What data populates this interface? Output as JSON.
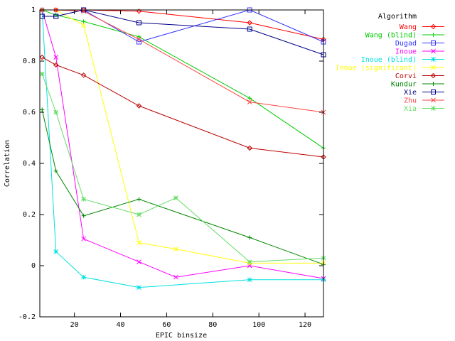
{
  "chart_data": {
    "type": "line",
    "title": "",
    "xlabel": "EPIC binsize",
    "ylabel": "Correlation",
    "xlim": [
      5,
      128
    ],
    "ylim": [
      -0.2,
      1.0
    ],
    "xticks": [
      20,
      40,
      60,
      80,
      100,
      120
    ],
    "yticks": [
      -0.2,
      0,
      0.2,
      0.4,
      0.6,
      0.8,
      1
    ],
    "ytick_labels": [
      "-0.2",
      "0",
      "0.2",
      "0.4",
      "0.6",
      "0.8",
      "1"
    ],
    "grid": false,
    "legend_title": "Algorithm",
    "legend_position": "top-right, outside plot",
    "series": [
      {
        "name": "Wang",
        "color": "#ff0000",
        "marker": "diamond",
        "x": [
          6,
          12,
          24,
          48,
          96,
          128
        ],
        "y": [
          1.0,
          1.0,
          1.0,
          0.995,
          0.95,
          0.885
        ]
      },
      {
        "name": "Wang (blind)",
        "color": "#00cc00",
        "marker": "plus",
        "x": [
          6,
          12,
          24,
          48,
          96,
          128
        ],
        "y": [
          1.0,
          0.98,
          0.955,
          0.895,
          0.655,
          0.46
        ]
      },
      {
        "name": "Dugad",
        "color": "#3333ff",
        "marker": "square",
        "x": [
          6,
          12,
          24,
          48,
          96,
          128
        ],
        "y": [
          0.975,
          0.975,
          1.0,
          0.875,
          1.0,
          0.875
        ]
      },
      {
        "name": "Inoue",
        "color": "#ff00ff",
        "marker": "x",
        "x": [
          6,
          12,
          24,
          48,
          64,
          96,
          128
        ],
        "y": [
          1.0,
          0.815,
          0.105,
          0.015,
          -0.045,
          0.0,
          -0.05
        ]
      },
      {
        "name": "Inoue (blind)",
        "color": "#00e0e0",
        "marker": "star",
        "x": [
          6,
          12,
          24,
          48,
          96,
          128
        ],
        "y": [
          1.0,
          0.055,
          -0.045,
          -0.085,
          -0.055,
          -0.055
        ]
      },
      {
        "name": "Inoue (significant)",
        "color": "#ffff00",
        "marker": "x",
        "x": [
          6,
          12,
          24,
          48,
          64,
          96,
          128
        ],
        "y": [
          1.0,
          1.0,
          0.94,
          0.09,
          0.065,
          0.01,
          0.01
        ]
      },
      {
        "name": "Corvi",
        "color": "#bb0000",
        "marker": "diamond",
        "x": [
          6,
          12,
          24,
          48,
          96,
          128
        ],
        "y": [
          0.815,
          0.785,
          0.745,
          0.625,
          0.46,
          0.425
        ]
      },
      {
        "name": "Kundur",
        "color": "#008800",
        "marker": "plus",
        "x": [
          6,
          12,
          24,
          48,
          96,
          128
        ],
        "y": [
          0.61,
          0.37,
          0.195,
          0.26,
          0.11,
          0.005
        ]
      },
      {
        "name": "Xie",
        "color": "#000088",
        "marker": "square",
        "x": [
          6,
          12,
          24,
          48,
          96,
          128
        ],
        "y": [
          0.975,
          0.975,
          1.0,
          0.95,
          0.925,
          0.825
        ]
      },
      {
        "name": "Zhu",
        "color": "#ff4444",
        "marker": "x",
        "x": [
          6,
          12,
          24,
          48,
          96,
          128
        ],
        "y": [
          1.0,
          1.0,
          0.995,
          0.885,
          0.64,
          0.6
        ]
      },
      {
        "name": "Xia",
        "color": "#66dd66",
        "marker": "star",
        "x": [
          6,
          12,
          24,
          48,
          64,
          96,
          128
        ],
        "y": [
          0.75,
          0.6,
          0.26,
          0.2,
          0.265,
          0.015,
          0.03
        ]
      }
    ]
  }
}
